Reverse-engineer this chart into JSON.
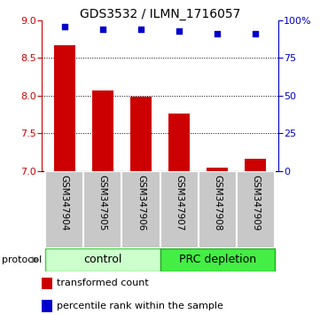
{
  "title": "GDS3532 / ILMN_1716057",
  "categories": [
    "GSM347904",
    "GSM347905",
    "GSM347906",
    "GSM347907",
    "GSM347908",
    "GSM347909"
  ],
  "red_values": [
    8.67,
    8.07,
    7.99,
    7.76,
    7.05,
    7.16
  ],
  "blue_values": [
    96,
    94,
    94,
    93,
    91,
    91
  ],
  "ylim_left": [
    7.0,
    9.0
  ],
  "ylim_right": [
    0,
    100
  ],
  "yticks_left": [
    7.0,
    7.5,
    8.0,
    8.5,
    9.0
  ],
  "yticks_right": [
    0,
    25,
    50,
    75,
    100
  ],
  "ytick_labels_right": [
    "0",
    "25",
    "50",
    "75",
    "100%"
  ],
  "grid_values": [
    7.5,
    8.0,
    8.5
  ],
  "bar_color": "#cc0000",
  "dot_color": "#0000cc",
  "bar_width": 0.55,
  "group_labels": [
    "control",
    "PRC depletion"
  ],
  "label_transformed": "transformed count",
  "label_percentile": "percentile rank within the sample",
  "protocol_label": "protocol",
  "color_left": "#cc0000",
  "color_right": "#0000cc",
  "ctrl_color_light": "#ccffcc",
  "ctrl_color_edge": "#44cc44",
  "prc_color": "#44ee44",
  "prc_color_edge": "#22aa22",
  "gray_box": "#c8c8c8",
  "gray_edge": "#888888",
  "figsize": [
    3.61,
    3.54
  ],
  "dpi": 100
}
